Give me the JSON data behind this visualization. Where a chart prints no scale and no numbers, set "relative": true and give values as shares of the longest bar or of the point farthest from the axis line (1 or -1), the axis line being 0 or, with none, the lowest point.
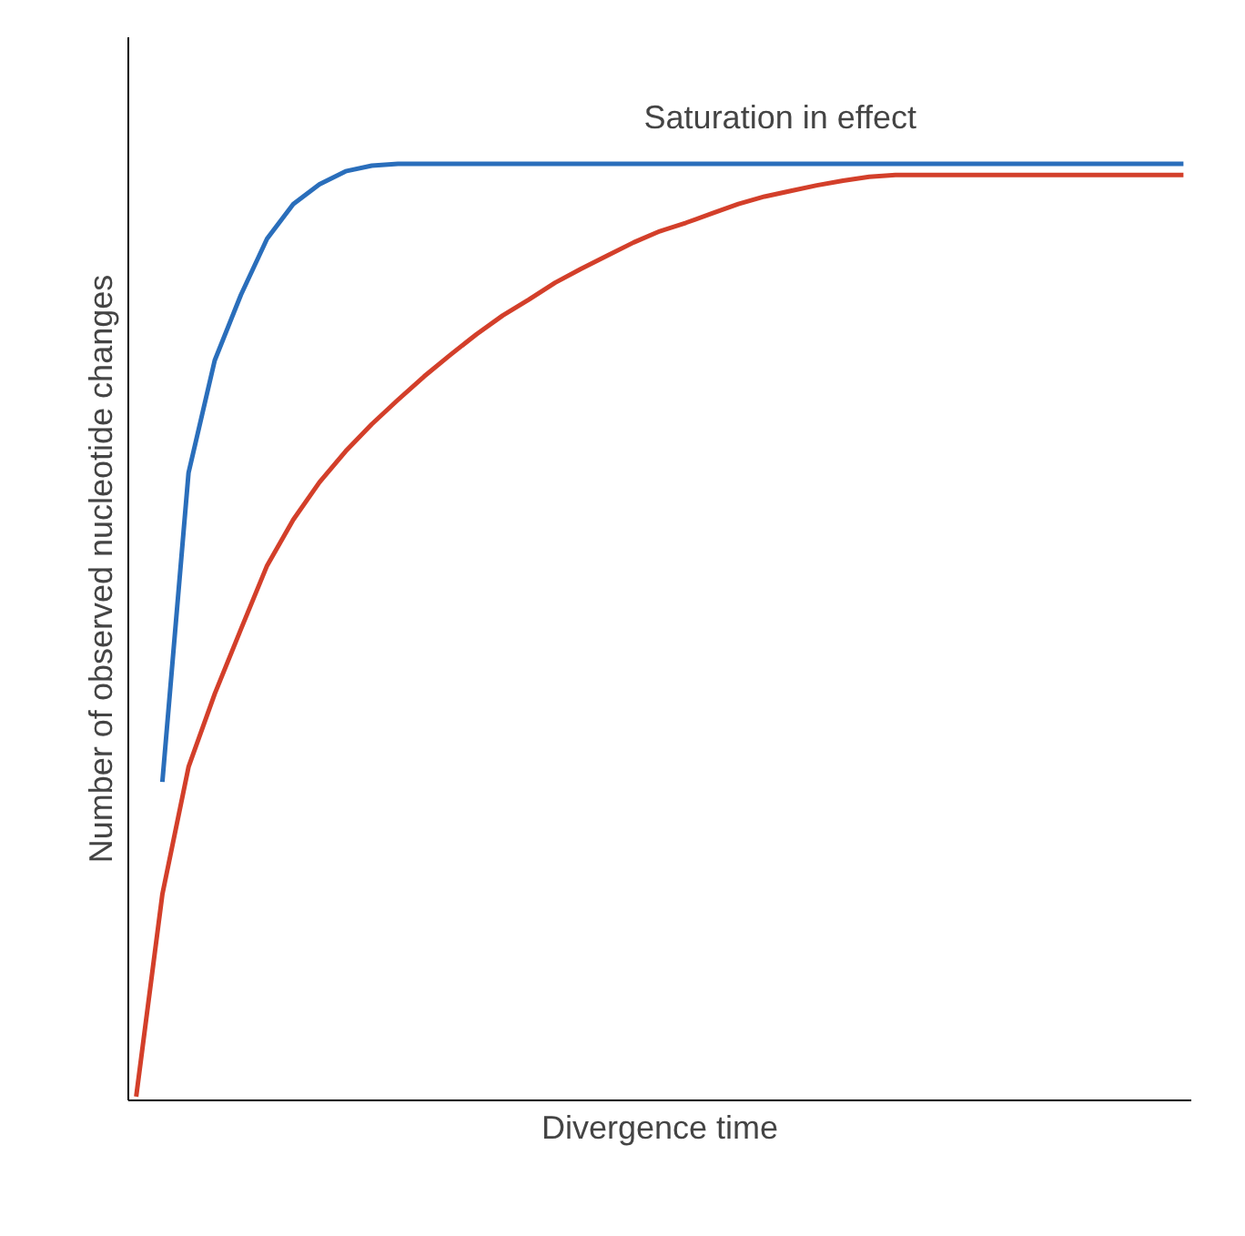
{
  "chart_data": {
    "type": "line",
    "relative": true,
    "xlabel": "Divergence time",
    "ylabel": "Number of observed nucleotide changes",
    "categories": [
      null,
      null,
      null,
      null,
      null,
      null,
      null,
      null,
      null,
      null,
      null,
      null,
      null,
      null,
      null,
      null,
      null,
      null,
      null,
      null,
      null,
      null,
      null,
      null,
      null,
      null,
      null,
      null,
      null,
      null,
      null,
      null,
      null,
      null,
      null,
      null,
      null,
      null,
      null,
      null,
      null
    ],
    "series": [
      {
        "color": "#2a6ebb",
        "values": [
          null,
          0.34,
          0.67,
          0.79,
          0.86,
          0.92,
          0.957,
          0.978,
          0.992,
          0.998,
          1,
          1,
          1,
          1,
          1,
          1,
          1,
          1,
          1,
          1,
          1,
          1,
          1,
          1,
          1,
          1,
          1,
          1,
          1,
          1,
          1,
          1,
          1,
          1,
          1,
          1,
          1,
          1,
          1,
          1,
          1
        ]
      },
      {
        "color": "#d33f2a",
        "values": [
          0.004,
          0.22,
          0.356,
          0.434,
          0.503,
          0.571,
          0.62,
          0.66,
          0.693,
          0.722,
          0.748,
          0.773,
          0.796,
          0.818,
          0.838,
          0.855,
          0.873,
          0.888,
          0.902,
          0.916,
          0.928,
          0.937,
          0.947,
          0.957,
          0.965,
          0.971,
          0.977,
          0.982,
          0.986,
          0.988,
          0.988,
          0.988,
          0.988,
          0.988,
          0.988,
          0.988,
          0.988,
          0.988,
          0.988,
          0.988,
          0.988
        ]
      }
    ],
    "annotations": [
      "Saturation in effect"
    ],
    "tick_labels": false,
    "marker": "none",
    "line_style": "solid"
  }
}
